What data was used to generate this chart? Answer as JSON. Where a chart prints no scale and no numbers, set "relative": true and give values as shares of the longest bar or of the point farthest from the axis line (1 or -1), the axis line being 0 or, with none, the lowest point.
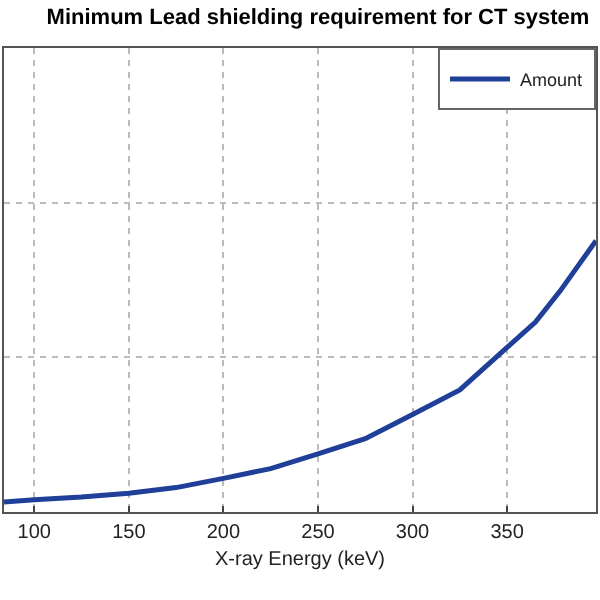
{
  "chart_data": {
    "type": "line",
    "title": "Minimum Lead shielding requirement for CT system",
    "xlabel": "X-ray Energy (keV)",
    "relative": true,
    "x": [
      84,
      100,
      125,
      150,
      175,
      200,
      225,
      250,
      275,
      300,
      325,
      350,
      365,
      378,
      397
    ],
    "series": [
      {
        "name": "Amount",
        "color": "#1f3f99",
        "values": [
          0.037,
          0.045,
          0.055,
          0.069,
          0.09,
          0.124,
          0.16,
          0.214,
          0.27,
          0.359,
          0.45,
          0.607,
          0.7,
          0.814,
          1
        ]
      }
    ],
    "xlim": [
      84,
      397
    ],
    "xticks": [
      100,
      150,
      200,
      250,
      300,
      350
    ],
    "grid": true,
    "legend": "top right",
    "marker": "none",
    "line_style": "solid"
  }
}
